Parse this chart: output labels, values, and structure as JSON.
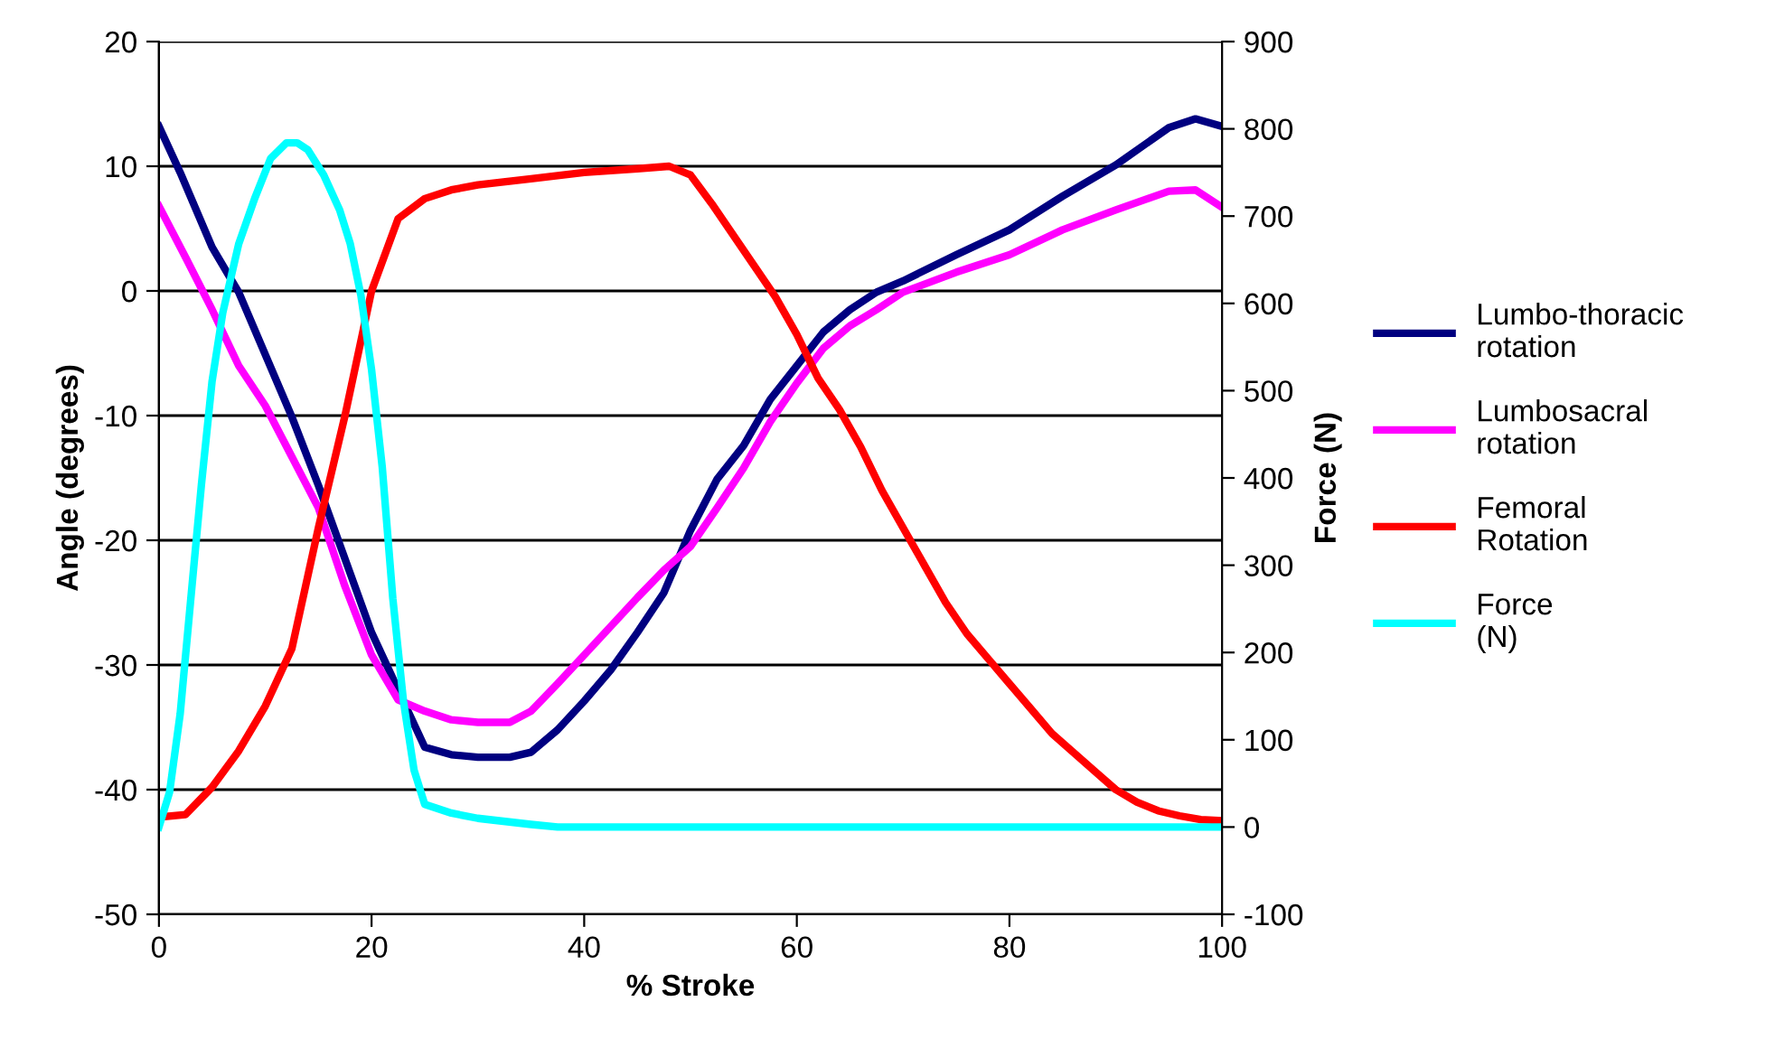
{
  "chart_data": {
    "type": "line",
    "xlabel": "% Stroke",
    "ylabel": "Angle (degrees)",
    "y2label": "Force (N)",
    "xlim": [
      0,
      100
    ],
    "xticks": [
      0,
      20,
      40,
      60,
      80,
      100
    ],
    "ylim": [
      -50,
      20
    ],
    "yticks": [
      -50,
      -40,
      -30,
      -20,
      -10,
      0,
      10,
      20
    ],
    "y2lim": [
      -100,
      900
    ],
    "y2ticks": [
      -100,
      0,
      100,
      200,
      300,
      400,
      500,
      600,
      700,
      800,
      900
    ],
    "grid": "y",
    "legend": "right",
    "marker": "none",
    "line_style": "solid",
    "series": [
      {
        "name": "Lumbo-thoracic rotation",
        "color": "#000080",
        "x": [
          0,
          2,
          5,
          7.5,
          10,
          12.5,
          15,
          17.5,
          20,
          22.5,
          25,
          27.5,
          30,
          33,
          35,
          37.5,
          40,
          42.5,
          45,
          47.5,
          50,
          52.5,
          55,
          57.5,
          60,
          62.5,
          65,
          67.5,
          70,
          75,
          80,
          85,
          90,
          95,
          97.5,
          100
        ],
        "values": [
          13.2,
          9.5,
          3.5,
          -0.1,
          -5.1,
          -10.1,
          -15.6,
          -21.5,
          -27.4,
          -32,
          -36.6,
          -37.2,
          -37.4,
          -37.4,
          -37,
          -35.2,
          -32.9,
          -30.4,
          -27.4,
          -24.2,
          -19.2,
          -15.1,
          -12.4,
          -8.7,
          -6,
          -3.3,
          -1.5,
          -0.1,
          0.8,
          2.9,
          4.9,
          7.6,
          10.1,
          13.1,
          13.8,
          13.2
        ]
      },
      {
        "name": "Lumbosacral rotation",
        "color": "#ff00ff",
        "x": [
          0,
          2.5,
          5,
          7.5,
          10,
          12.5,
          15,
          17.5,
          20,
          22.5,
          25,
          27.5,
          30,
          33,
          35,
          37.5,
          40,
          42.5,
          45,
          47.5,
          50,
          52.5,
          55,
          57.5,
          60,
          62.5,
          65,
          67.5,
          70,
          75,
          80,
          85,
          90,
          95,
          97.5,
          100
        ],
        "values": [
          6.8,
          2.7,
          -1.5,
          -6,
          -9.2,
          -13.3,
          -17.4,
          -23.7,
          -29.2,
          -32.8,
          -33.7,
          -34.4,
          -34.6,
          -34.6,
          -33.7,
          -31.5,
          -29.2,
          -26.9,
          -24.6,
          -22.4,
          -20.5,
          -17.4,
          -14.2,
          -10.5,
          -7.4,
          -4.6,
          -2.8,
          -1.5,
          -0.1,
          1.5,
          2.9,
          4.9,
          6.5,
          8,
          8.1,
          6.7
        ]
      },
      {
        "name": "Femoral Rotation",
        "color": "#ff0000",
        "x": [
          0,
          2.5,
          5,
          7.5,
          10,
          12.5,
          15,
          17.5,
          20,
          22.5,
          25,
          27.5,
          30,
          35,
          40,
          45,
          48,
          50,
          52,
          54,
          56,
          58,
          60,
          62,
          64,
          66,
          68,
          70,
          72,
          74,
          76,
          78,
          80,
          82,
          84,
          86,
          88,
          90,
          92,
          94,
          96,
          98,
          100
        ],
        "values": [
          -42.2,
          -42,
          -39.8,
          -36.9,
          -33.3,
          -28.7,
          -19,
          -10,
          0,
          5.8,
          7.4,
          8.1,
          8.5,
          9,
          9.5,
          9.8,
          10,
          9.3,
          7,
          4.5,
          2,
          -0.5,
          -3.5,
          -7,
          -9.5,
          -12.5,
          -16,
          -19,
          -22,
          -25,
          -27.5,
          -29.5,
          -31.5,
          -33.5,
          -35.5,
          -37,
          -38.5,
          -40,
          -41,
          -41.7,
          -42.1,
          -42.4,
          -42.5
        ]
      },
      {
        "name": "Force (N)",
        "color": "#00ffff",
        "axis": "y2",
        "x": [
          0,
          1,
          2,
          3,
          4,
          5,
          6,
          7.5,
          9,
          10.5,
          12,
          13,
          14,
          15.5,
          17,
          18,
          19,
          20,
          21,
          22,
          23,
          24,
          25,
          27.5,
          30,
          35,
          37.5,
          100
        ],
        "values": [
          0,
          40,
          130,
          262,
          393,
          511,
          589,
          668,
          720,
          766,
          784,
          784,
          776,
          747,
          707,
          668,
          609,
          524,
          413,
          262,
          144,
          65,
          26,
          16,
          10,
          3,
          0,
          0
        ]
      }
    ]
  }
}
